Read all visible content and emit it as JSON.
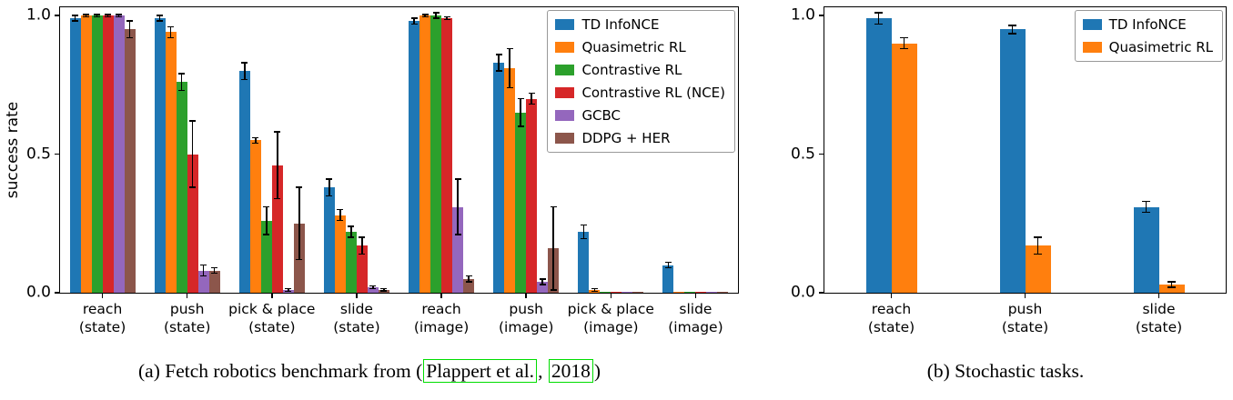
{
  "captions": {
    "a": {
      "prefix": "(a) Fetch robotics benchmark from (",
      "citation_name": "Plappert et al.",
      "citation_sep": ", ",
      "citation_year": "2018",
      "suffix": ")",
      "link_box_color": "#00dd00"
    },
    "b": {
      "text": "(b) Stochastic tasks."
    }
  },
  "chart_data": [
    {
      "type": "bar",
      "panel": "a",
      "title": "(a) Fetch robotics benchmark from (Plappert et al., 2018)",
      "xlabel": "",
      "ylabel": "success rate",
      "ylim": [
        0,
        1.03
      ],
      "yticks": [
        0,
        0.5,
        1.0
      ],
      "ytick_labels": [
        "0.0",
        "0.5",
        "1.0"
      ],
      "grid": false,
      "legend_position": "upper right",
      "categories": [
        "reach\n(state)",
        "push\n(state)",
        "pick & place\n(state)",
        "slide\n(state)",
        "reach\n(image)",
        "push\n(image)",
        "pick & place\n(image)",
        "slide\n(image)"
      ],
      "series": [
        {
          "name": "TD InfoNCE",
          "color": "#1f77b4",
          "values": [
            0.99,
            0.99,
            0.8,
            0.38,
            0.98,
            0.83,
            0.22,
            0.1
          ],
          "errors": [
            0.01,
            0.01,
            0.03,
            0.03,
            0.01,
            0.03,
            0.025,
            0.01
          ]
        },
        {
          "name": "Quasimetric RL",
          "color": "#ff7f0e",
          "values": [
            1.0,
            0.94,
            0.55,
            0.28,
            1.0,
            0.81,
            0.01,
            0.003
          ],
          "errors": [
            0.004,
            0.02,
            0.01,
            0.02,
            0.004,
            0.07,
            0.005,
            0
          ]
        },
        {
          "name": "Contrastive RL",
          "color": "#2ca02c",
          "values": [
            1.0,
            0.76,
            0.26,
            0.22,
            1.0,
            0.65,
            0.003,
            0.003
          ],
          "errors": [
            0.004,
            0.03,
            0.05,
            0.02,
            0.01,
            0.05,
            0,
            0
          ]
        },
        {
          "name": "Contrastive RL (NCE)",
          "color": "#d62728",
          "values": [
            1.0,
            0.5,
            0.46,
            0.17,
            0.99,
            0.7,
            0.003,
            0.003
          ],
          "errors": [
            0.004,
            0.12,
            0.12,
            0.03,
            0.005,
            0.02,
            0,
            0
          ]
        },
        {
          "name": "GCBC",
          "color": "#9467bd",
          "values": [
            1.0,
            0.08,
            0.01,
            0.02,
            0.31,
            0.04,
            0.003,
            0.003
          ],
          "errors": [
            0.004,
            0.02,
            0.005,
            0.005,
            0.1,
            0.01,
            0,
            0
          ]
        },
        {
          "name": "DDPG + HER",
          "color": "#8c564b",
          "values": [
            0.95,
            0.08,
            0.25,
            0.01,
            0.05,
            0.16,
            0.003,
            0.003
          ],
          "errors": [
            0.03,
            0.01,
            0.13,
            0.004,
            0.01,
            0.15,
            0,
            0
          ]
        }
      ]
    },
    {
      "type": "bar",
      "panel": "b",
      "title": "(b) Stochastic tasks.",
      "xlabel": "",
      "ylabel": "",
      "ylim": [
        0,
        1.03
      ],
      "yticks": [
        0,
        0.5,
        1.0
      ],
      "ytick_labels": [
        "0.0",
        "0.5",
        "1.0"
      ],
      "grid": false,
      "legend_position": "upper right",
      "categories": [
        "reach\n(state)",
        "push\n(state)",
        "slide\n(state)"
      ],
      "series": [
        {
          "name": "TD InfoNCE",
          "color": "#1f77b4",
          "values": [
            0.99,
            0.95,
            0.31
          ],
          "errors": [
            0.02,
            0.015,
            0.02
          ]
        },
        {
          "name": "Quasimetric RL",
          "color": "#ff7f0e",
          "values": [
            0.9,
            0.17,
            0.03
          ],
          "errors": [
            0.02,
            0.03,
            0.01
          ]
        }
      ]
    }
  ]
}
